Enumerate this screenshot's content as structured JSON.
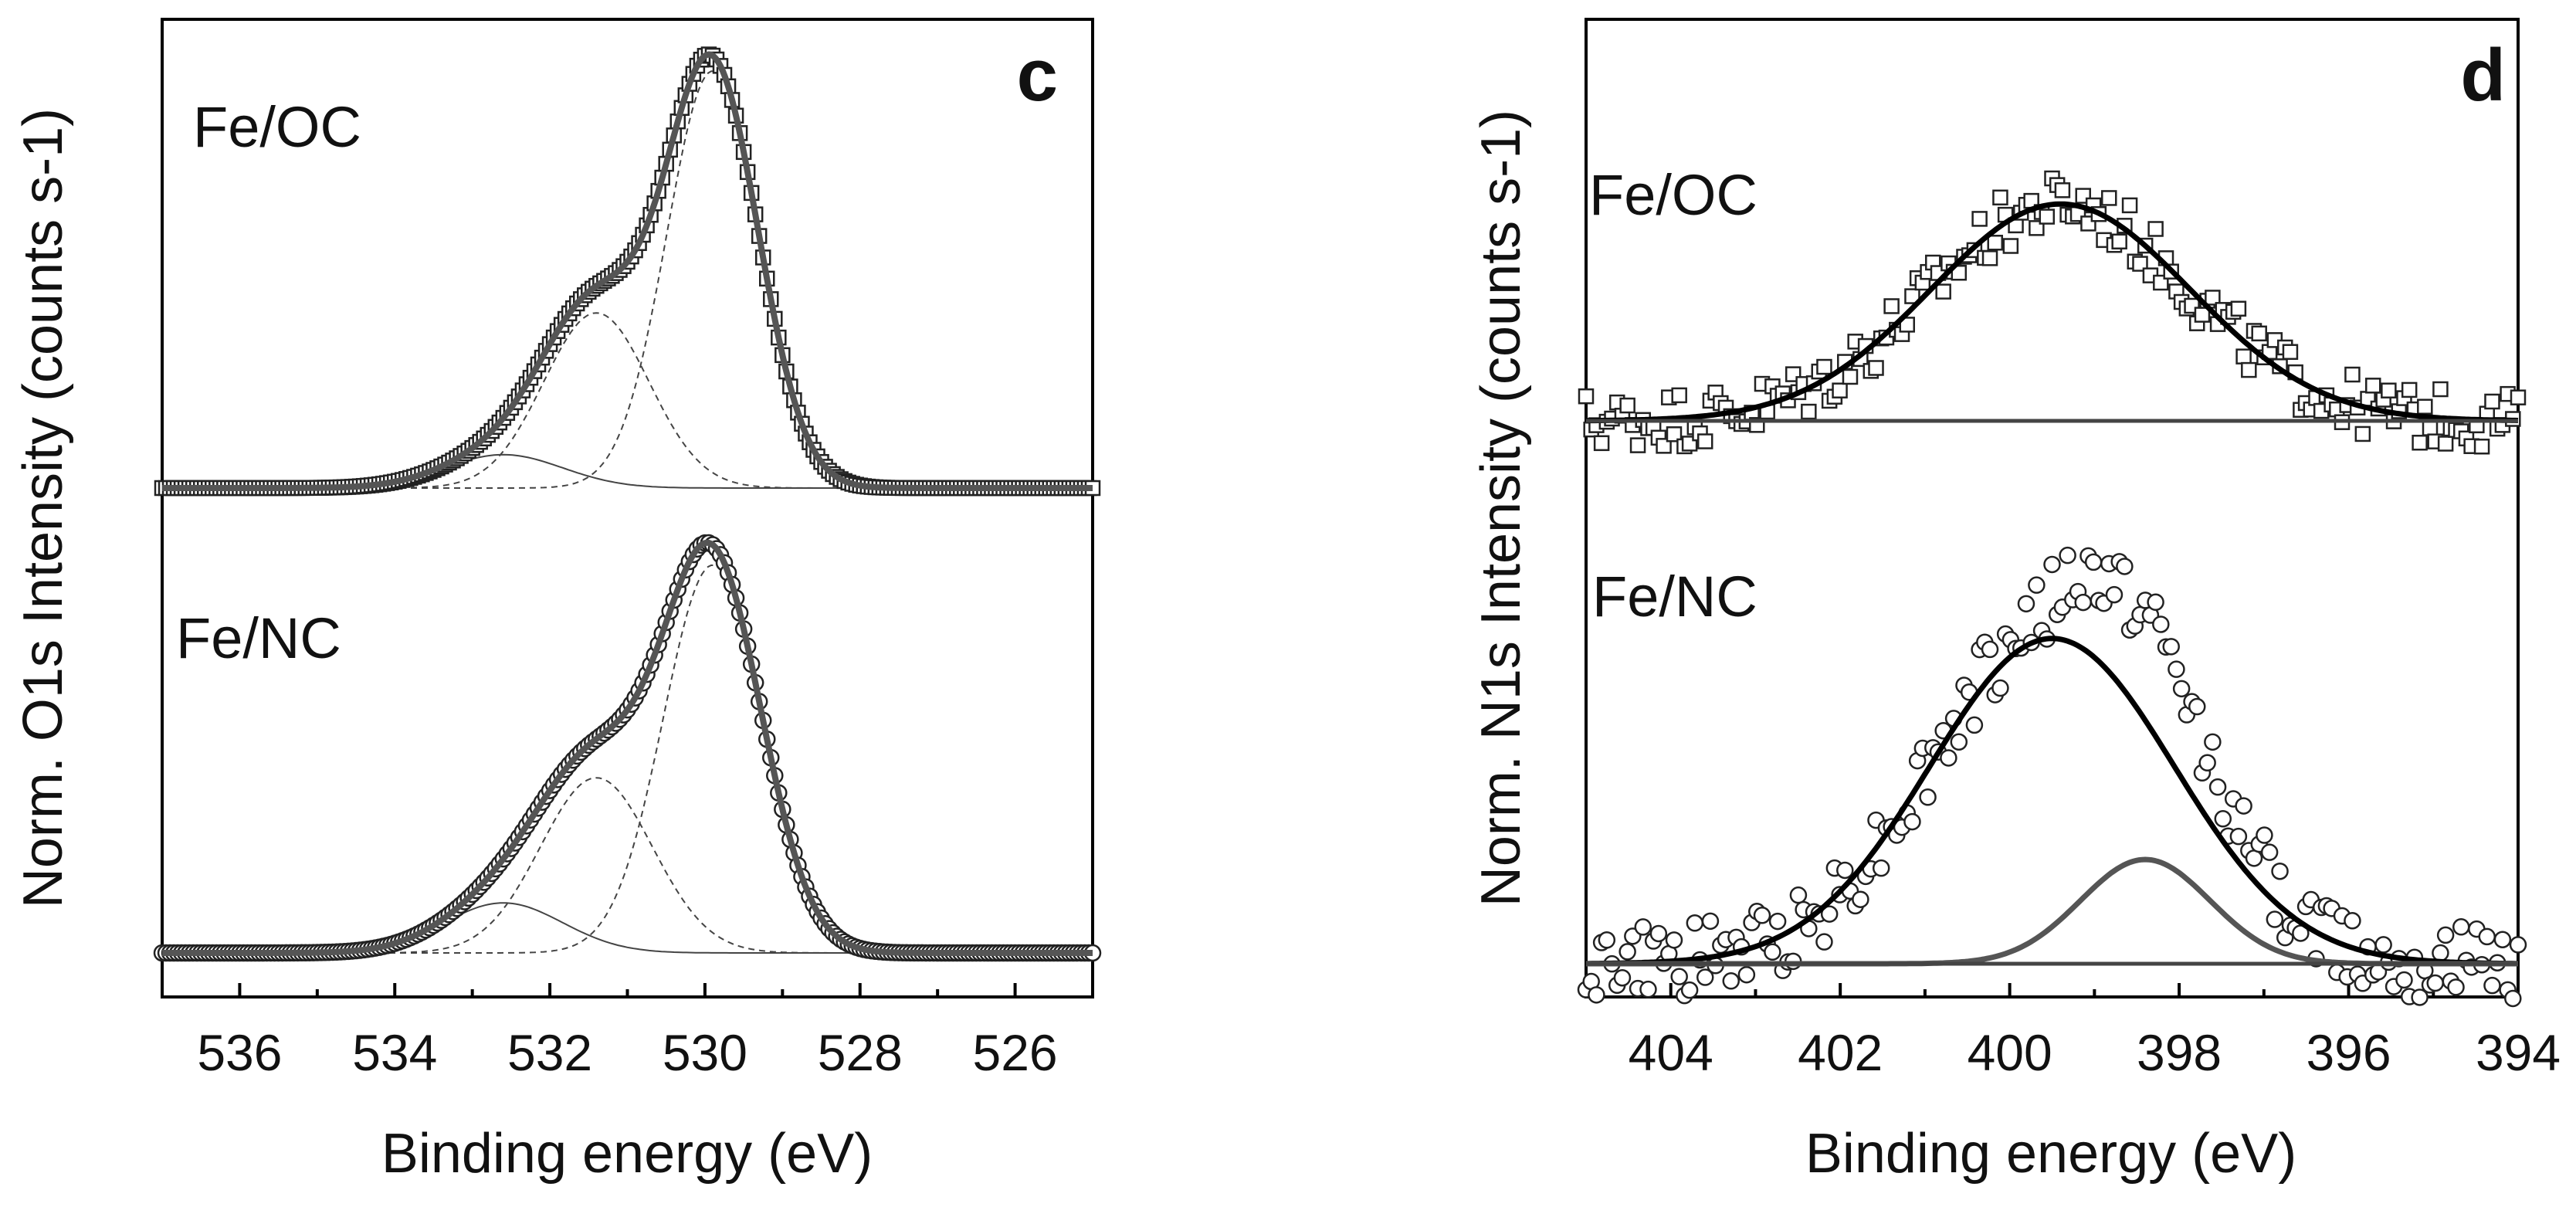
{
  "chart_data": [
    {
      "panel": "c",
      "type": "line",
      "xlabel": "Binding energy (eV)",
      "ylabel": "Norm. O1s Intensity (counts s-1)",
      "xlim": [
        537,
        525
      ],
      "x_ticks": [
        536,
        534,
        532,
        530,
        528,
        526
      ],
      "x_tick_labels": [
        "536",
        "534",
        "532",
        "530",
        "528",
        "526"
      ],
      "y_ticks": "none",
      "grid": false,
      "series": [
        {
          "name": "Fe/OC",
          "stack_offset": 1,
          "marker": "square",
          "background": 0,
          "fit_peaks": [
            {
              "center": 529.9,
              "fwhm": 1.4,
              "height": 1.0
            },
            {
              "center": 531.4,
              "fwhm": 1.6,
              "height": 0.42
            },
            {
              "center": 532.6,
              "fwhm": 1.8,
              "height": 0.08
            }
          ]
        },
        {
          "name": "Fe/NC",
          "stack_offset": 0,
          "marker": "circle",
          "background": 0,
          "fit_peaks": [
            {
              "center": 529.9,
              "fwhm": 1.5,
              "height": 0.93
            },
            {
              "center": 531.4,
              "fwhm": 1.7,
              "height": 0.42
            },
            {
              "center": 532.6,
              "fwhm": 1.8,
              "height": 0.12
            }
          ]
        }
      ]
    },
    {
      "panel": "d",
      "type": "line",
      "xlabel": "Binding energy (eV)",
      "ylabel": "Norm. N1s Intensity (counts s-1)",
      "xlim": [
        405,
        394
      ],
      "x_ticks": [
        404,
        402,
        400,
        398,
        396,
        394
      ],
      "x_tick_labels": [
        "404",
        "402",
        "400",
        "398",
        "396",
        "394"
      ],
      "y_ticks": "none",
      "grid": false,
      "series": [
        {
          "name": "Fe/OC",
          "stack_offset": 1,
          "marker": "square",
          "noise": 0.07,
          "fit_peaks": [
            {
              "center": 399.4,
              "fwhm": 3.6,
              "height": 0.52
            }
          ]
        },
        {
          "name": "Fe/NC",
          "stack_offset": 0,
          "marker": "circle",
          "noise": 0.09,
          "fit_peaks": [
            {
              "center": 399.5,
              "fwhm": 3.4,
              "height": 0.78
            },
            {
              "center": 398.4,
              "fwhm": 1.8,
              "height": 0.25
            }
          ]
        }
      ]
    }
  ]
}
